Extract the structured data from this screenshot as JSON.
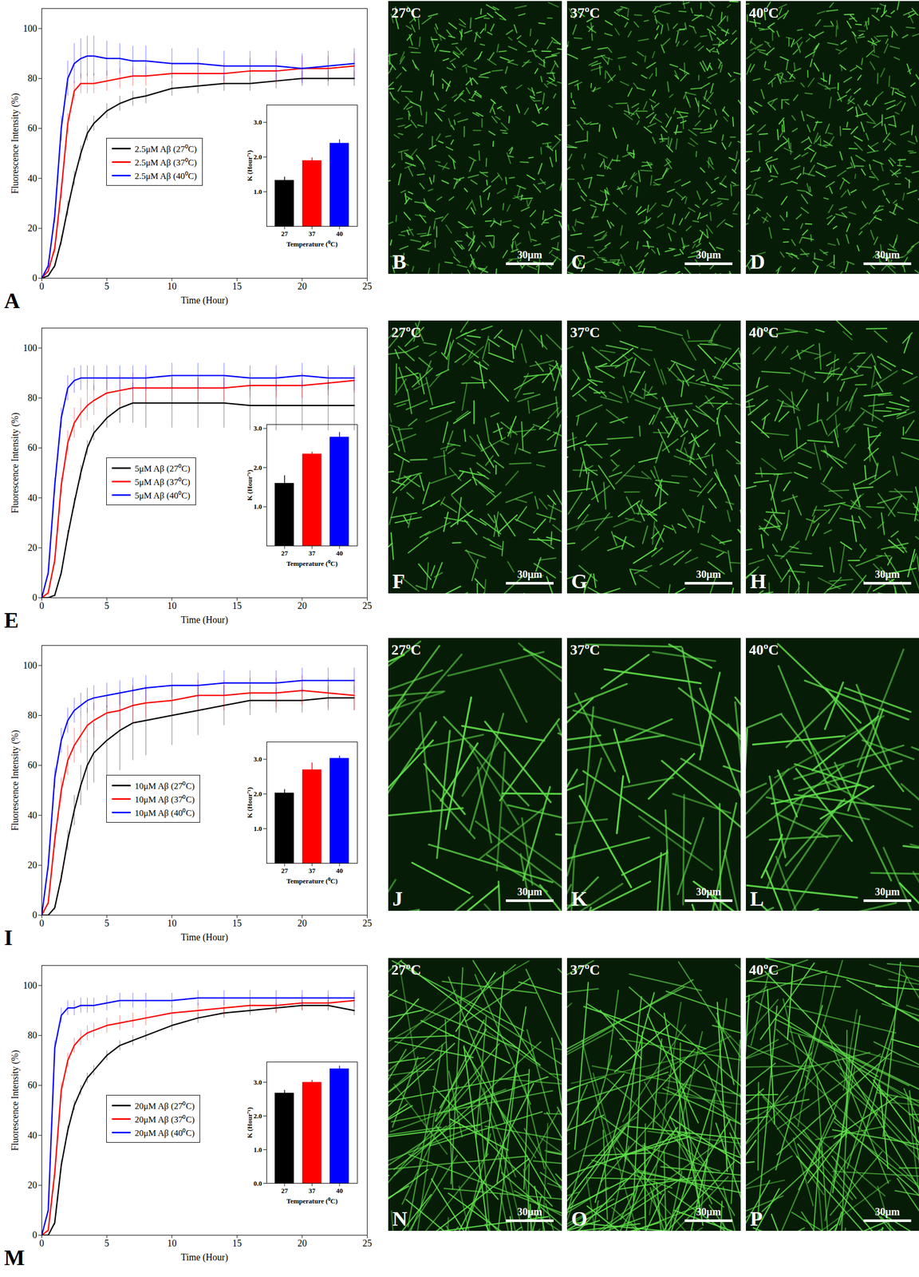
{
  "chart_data": [
    {
      "type": "line",
      "panel": "A",
      "x_label": "Time (Hour)",
      "y_label": "Fluorescence Intensity (%)",
      "x": [
        0,
        0.5,
        1,
        1.5,
        2,
        2.5,
        3,
        3.5,
        4,
        5,
        6,
        7,
        8,
        10,
        12,
        14,
        16,
        18,
        20,
        22,
        24
      ],
      "xlim": [
        0,
        25
      ],
      "xticks": [
        0,
        5,
        10,
        15,
        20,
        25
      ],
      "ylim": [
        0,
        108
      ],
      "yticks": [
        0,
        20,
        40,
        60,
        80,
        100
      ],
      "series": [
        {
          "name": "2.5μM Aβ (27⁰C)",
          "color": "#000000",
          "values": [
            0,
            1,
            5,
            15,
            28,
            40,
            50,
            58,
            62,
            67,
            70,
            72,
            73,
            76,
            77,
            78,
            78,
            79,
            80,
            80,
            80
          ],
          "errors": [
            0,
            0.5,
            1,
            2,
            3,
            3,
            3,
            3,
            3,
            3,
            3,
            3,
            3,
            3,
            3,
            3,
            3,
            3,
            3,
            3,
            3
          ]
        },
        {
          "name": "2.5μM Aβ (37⁰C)",
          "color": "#ff0000",
          "values": [
            0,
            3,
            12,
            35,
            62,
            75,
            78,
            78,
            78,
            79,
            80,
            81,
            81,
            82,
            82,
            82,
            83,
            83,
            84,
            84,
            85
          ],
          "errors": [
            0,
            1,
            2,
            3,
            4,
            4,
            4,
            4,
            4,
            4,
            4,
            4,
            4,
            4,
            4,
            4,
            5,
            5,
            5,
            5,
            5
          ]
        },
        {
          "name": "2.5μM Aβ (40⁰C)",
          "color": "#0000ff",
          "values": [
            0,
            5,
            25,
            60,
            80,
            86,
            88,
            89,
            89,
            88,
            88,
            87,
            87,
            86,
            86,
            85,
            85,
            85,
            84,
            85,
            86
          ],
          "errors": [
            0,
            1,
            3,
            5,
            7,
            8,
            8,
            8,
            8,
            7,
            6,
            6,
            6,
            6,
            6,
            6,
            6,
            6,
            6,
            6,
            6
          ]
        }
      ]
    },
    {
      "type": "bar",
      "x_label": "Temperature (⁰C)",
      "y_label": "K (Hour⁻¹)",
      "categories": [
        "27",
        "37",
        "40"
      ],
      "values": [
        1.33,
        1.9,
        2.4
      ],
      "errors": [
        0.1,
        0.08,
        0.1
      ],
      "colors": [
        "#000000",
        "#ff0000",
        "#0000ff"
      ],
      "ylim": [
        0,
        3.5
      ],
      "yticks": [
        1,
        2,
        3
      ]
    },
    {
      "type": "line",
      "panel": "E",
      "x_label": "Time (Hour)",
      "y_label": "Fluorescence Intensity (%)",
      "x": [
        0,
        0.5,
        1,
        1.5,
        2,
        2.5,
        3,
        3.5,
        4,
        5,
        6,
        7,
        8,
        10,
        12,
        14,
        16,
        18,
        20,
        22,
        24
      ],
      "xlim": [
        0,
        25
      ],
      "xticks": [
        0,
        5,
        10,
        15,
        20,
        25
      ],
      "ylim": [
        0,
        108
      ],
      "yticks": [
        0,
        20,
        40,
        60,
        80,
        100
      ],
      "series": [
        {
          "name": "5μM Aβ (27⁰C)",
          "color": "#000000",
          "values": [
            0,
            0,
            1,
            10,
            25,
            38,
            50,
            60,
            66,
            72,
            76,
            78,
            78,
            78,
            78,
            78,
            77,
            77,
            77,
            77,
            77
          ],
          "errors": [
            0,
            0,
            0.5,
            1,
            2,
            2,
            3,
            3,
            3,
            4,
            6,
            8,
            10,
            10,
            10,
            10,
            10,
            10,
            10,
            10,
            10
          ]
        },
        {
          "name": "5μM Aβ (37⁰C)",
          "color": "#ff0000",
          "values": [
            0,
            2,
            15,
            45,
            62,
            70,
            74,
            77,
            79,
            82,
            83,
            84,
            84,
            84,
            84,
            84,
            85,
            85,
            85,
            86,
            87
          ],
          "errors": [
            0,
            1,
            2,
            3,
            5,
            6,
            6,
            6,
            6,
            6,
            6,
            6,
            6,
            5,
            5,
            5,
            5,
            5,
            5,
            5,
            5
          ]
        },
        {
          "name": "5μM Aβ (40⁰C)",
          "color": "#0000ff",
          "values": [
            0,
            10,
            45,
            72,
            84,
            87,
            88,
            88,
            88,
            88,
            88,
            88,
            88,
            89,
            89,
            89,
            88,
            88,
            89,
            88,
            88
          ],
          "errors": [
            0,
            1,
            3,
            4,
            5,
            5,
            5,
            5,
            5,
            5,
            5,
            5,
            5,
            5,
            5,
            5,
            5,
            5,
            5,
            5,
            5
          ]
        }
      ]
    },
    {
      "type": "bar",
      "x_label": "Temperature (⁰C)",
      "y_label": "K (Hour⁻¹)",
      "categories": [
        "27",
        "37",
        "40"
      ],
      "values": [
        1.6,
        2.35,
        2.78
      ],
      "errors": [
        0.2,
        0.05,
        0.12
      ],
      "colors": [
        "#000000",
        "#ff0000",
        "#0000ff"
      ],
      "ylim": [
        0,
        3.1
      ],
      "yticks": [
        1,
        2,
        3
      ]
    },
    {
      "type": "line",
      "panel": "I",
      "x_label": "Time (Hour)",
      "y_label": "Fluorescence Intensity (%)",
      "x": [
        0,
        0.5,
        1,
        1.5,
        2,
        2.5,
        3,
        3.5,
        4,
        5,
        6,
        7,
        8,
        10,
        12,
        14,
        16,
        18,
        20,
        22,
        24
      ],
      "xlim": [
        0,
        25
      ],
      "xticks": [
        0,
        5,
        10,
        15,
        20,
        25
      ],
      "ylim": [
        0,
        108
      ],
      "yticks": [
        0,
        20,
        40,
        60,
        80,
        100
      ],
      "series": [
        {
          "name": "10μM Aβ (27⁰C)",
          "color": "#000000",
          "values": [
            0,
            0,
            3,
            15,
            30,
            42,
            52,
            60,
            65,
            70,
            74,
            77,
            78,
            80,
            82,
            84,
            86,
            86,
            86,
            87,
            87
          ],
          "errors": [
            0,
            0,
            1,
            2,
            4,
            6,
            8,
            10,
            12,
            14,
            16,
            15,
            14,
            12,
            10,
            8,
            6,
            5,
            5,
            5,
            5
          ]
        },
        {
          "name": "10μM Aβ (37⁰C)",
          "color": "#ff0000",
          "values": [
            0,
            5,
            30,
            50,
            62,
            68,
            72,
            76,
            78,
            81,
            82,
            84,
            85,
            86,
            88,
            88,
            89,
            89,
            90,
            89,
            88
          ],
          "errors": [
            0,
            1,
            3,
            5,
            6,
            7,
            7,
            7,
            7,
            7,
            7,
            7,
            6,
            6,
            6,
            6,
            6,
            6,
            6,
            6,
            6
          ]
        },
        {
          "name": "10μM Aβ (40⁰C)",
          "color": "#0000ff",
          "values": [
            0,
            20,
            55,
            70,
            78,
            82,
            84,
            86,
            87,
            88,
            89,
            90,
            91,
            92,
            92,
            93,
            93,
            93,
            94,
            94,
            94
          ],
          "errors": [
            0,
            2,
            4,
            5,
            5,
            5,
            5,
            5,
            5,
            5,
            5,
            5,
            5,
            5,
            5,
            5,
            5,
            5,
            5,
            5,
            5
          ]
        }
      ]
    },
    {
      "type": "bar",
      "x_label": "Temperature (⁰C)",
      "y_label": "K (Hour⁻¹)",
      "categories": [
        "27",
        "37",
        "40"
      ],
      "values": [
        2.03,
        2.7,
        3.03
      ],
      "errors": [
        0.1,
        0.2,
        0.07
      ],
      "colors": [
        "#000000",
        "#ff0000",
        "#0000ff"
      ],
      "ylim": [
        0,
        3.5
      ],
      "yticks": [
        1,
        2,
        3
      ]
    },
    {
      "type": "line",
      "panel": "M",
      "x_label": "Time (Hour)",
      "y_label": "Fluorescence Intensity (%)",
      "x": [
        0,
        0.5,
        1,
        1.5,
        2,
        2.5,
        3,
        3.5,
        4,
        5,
        6,
        7,
        8,
        10,
        12,
        14,
        16,
        18,
        20,
        22,
        24
      ],
      "xlim": [
        0,
        25
      ],
      "xticks": [
        0,
        5,
        10,
        15,
        20,
        25
      ],
      "ylim": [
        0,
        108
      ],
      "yticks": [
        0,
        20,
        40,
        60,
        80,
        100
      ],
      "series": [
        {
          "name": "20μM Aβ (27⁰C)",
          "color": "#000000",
          "values": [
            0,
            0,
            5,
            28,
            42,
            52,
            58,
            63,
            66,
            72,
            76,
            78,
            80,
            84,
            87,
            89,
            90,
            91,
            92,
            92,
            90
          ],
          "errors": [
            0,
            0,
            1,
            2,
            2,
            2,
            2,
            2,
            2,
            2,
            2,
            2,
            2,
            2,
            2,
            2,
            2,
            2,
            2,
            2,
            2
          ]
        },
        {
          "name": "20μM Aβ (37⁰C)",
          "color": "#ff0000",
          "values": [
            0,
            2,
            25,
            58,
            70,
            76,
            79,
            81,
            82,
            84,
            85,
            86,
            87,
            89,
            90,
            91,
            92,
            92,
            93,
            93,
            94
          ],
          "errors": [
            0,
            1,
            2,
            3,
            3,
            3,
            3,
            3,
            3,
            3,
            3,
            3,
            3,
            3,
            3,
            3,
            3,
            3,
            3,
            3,
            3
          ]
        },
        {
          "name": "20μM Aβ (40⁰C)",
          "color": "#0000ff",
          "values": [
            0,
            10,
            75,
            88,
            91,
            91,
            92,
            92,
            92,
            93,
            94,
            94,
            94,
            94,
            95,
            95,
            95,
            95,
            95,
            95,
            95
          ],
          "errors": [
            0,
            1,
            3,
            3,
            3,
            3,
            3,
            3,
            3,
            3,
            3,
            3,
            3,
            3,
            3,
            3,
            3,
            3,
            3,
            3,
            3
          ]
        }
      ]
    },
    {
      "type": "bar",
      "x_label": "Temperature (⁰C)",
      "y_label": "K (Hour⁻¹)",
      "categories": [
        "27",
        "37",
        "40"
      ],
      "values": [
        2.68,
        3.0,
        3.4
      ],
      "errors": [
        0.08,
        0.06,
        0.08
      ],
      "colors": [
        "#000000",
        "#ff0000",
        "#0000ff"
      ],
      "ylim": [
        0,
        3.6
      ],
      "yticks": [
        0,
        1,
        2,
        3
      ]
    }
  ],
  "image_panels": [
    [
      {
        "label": "B",
        "temperature": "27ºC",
        "scale_bar": "30μm"
      },
      {
        "label": "C",
        "temperature": "37ºC",
        "scale_bar": "30μm"
      },
      {
        "label": "D",
        "temperature": "40ºC",
        "scale_bar": "30μm"
      }
    ],
    [
      {
        "label": "F",
        "temperature": "27ºC",
        "scale_bar": "30μm"
      },
      {
        "label": "G",
        "temperature": "37ºC",
        "scale_bar": "30μm"
      },
      {
        "label": "H",
        "temperature": "40ºC",
        "scale_bar": "30μm"
      }
    ],
    [
      {
        "label": "J",
        "temperature": "27ºC",
        "scale_bar": "30μm"
      },
      {
        "label": "K",
        "temperature": "37ºC",
        "scale_bar": "30μm"
      },
      {
        "label": "L",
        "temperature": "40ºC",
        "scale_bar": "30μm"
      }
    ],
    [
      {
        "label": "N",
        "temperature": "27ºC",
        "scale_bar": "30μm"
      },
      {
        "label": "O",
        "temperature": "37ºC",
        "scale_bar": "30μm"
      },
      {
        "label": "P",
        "temperature": "40ºC",
        "scale_bar": "30μm"
      }
    ]
  ]
}
